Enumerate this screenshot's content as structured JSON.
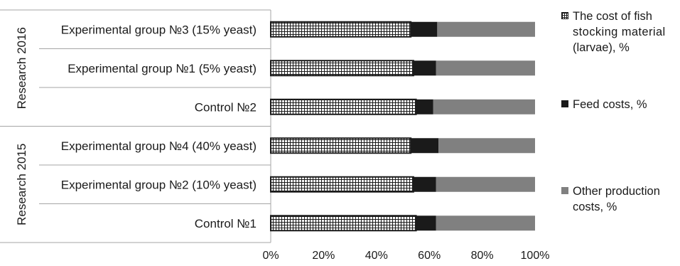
{
  "chart_data": {
    "type": "bar",
    "orientation": "horizontal",
    "stacked": "100%",
    "groups": [
      {
        "label": "Research 2016",
        "categories": [
          "Experimental group №3 (15% yeast)",
          "Experimental group №1 (5% yeast)",
          "Control №2"
        ]
      },
      {
        "label": "Research 2015",
        "categories": [
          "Experimental group №4 (40% yeast)",
          "Experimental group №2 (10% yeast)",
          "Control №1"
        ]
      }
    ],
    "categories": [
      "Experimental group №3 (15% yeast)",
      "Experimental group №1 (5% yeast)",
      "Control №2",
      "Experimental group №4 (40% yeast)",
      "Experimental group №2 (10% yeast)",
      "Control №1"
    ],
    "series": [
      {
        "name": "The cost of fish stocking material (larvae), %",
        "values": [
          53,
          54,
          55,
          53,
          54,
          55
        ],
        "color": "#ffffff",
        "pattern": "grid"
      },
      {
        "name": "Feed costs, %",
        "values": [
          10,
          8.5,
          6.5,
          10.5,
          8.5,
          7.5
        ],
        "color": "#1a1a1a"
      },
      {
        "name": "Other production costs, %",
        "values": [
          37,
          37.5,
          38.5,
          36.5,
          37.5,
          37.5
        ],
        "color": "#808080"
      }
    ],
    "xlim": [
      0,
      100
    ],
    "xticks": [
      "0%",
      "20%",
      "40%",
      "60%",
      "80%",
      "100%"
    ],
    "legend_position": "right"
  },
  "legend": {
    "stocking_lines": [
      "The cost of fish",
      "stocking material",
      "(larvae), %"
    ],
    "feed": "Feed costs, %",
    "other_lines": [
      "Other production",
      "costs, %"
    ]
  }
}
